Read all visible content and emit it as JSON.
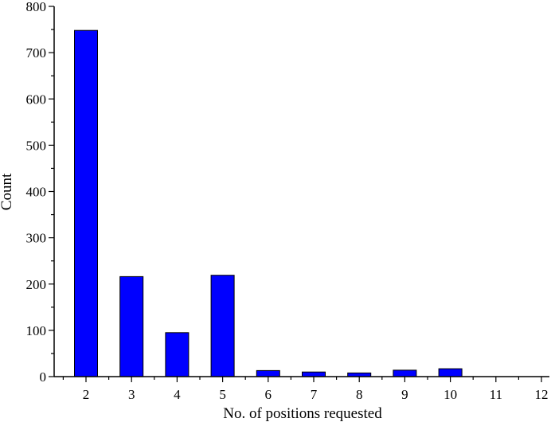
{
  "chart_data": {
    "type": "bar",
    "title": "",
    "xlabel": "No. of positions requested",
    "ylabel": "Count",
    "categories": [
      "2",
      "3",
      "4",
      "5",
      "6",
      "7",
      "8",
      "9",
      "10",
      "11",
      "12"
    ],
    "values": [
      748,
      216,
      95,
      219,
      13,
      10,
      8,
      14,
      17,
      0,
      0
    ],
    "ylim": [
      0,
      800
    ],
    "yticks": [
      0,
      100,
      200,
      300,
      400,
      500,
      600,
      700,
      800
    ],
    "bar_color": "#0000ff",
    "grid": false,
    "legend": "none"
  }
}
